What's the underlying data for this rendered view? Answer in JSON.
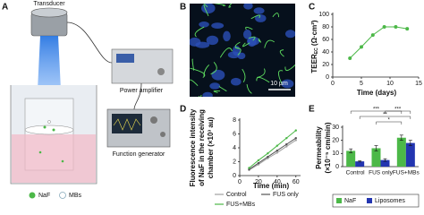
{
  "figure": {
    "panel_labels": [
      "A",
      "B",
      "C",
      "D",
      "E"
    ],
    "diagram": {
      "transducer": "Transducer",
      "power_amplifier": "Power amplifier",
      "function_generator": "Function generator",
      "legend": [
        "NaF",
        "MBs"
      ]
    },
    "scale_bar": "10 µm"
  },
  "chart_data": [
    {
      "type": "line",
      "ylabel": {
        "main": "TEER",
        "sub": "EC",
        "unit": "(Ω·cm²)"
      },
      "xlabel": "Time (days)",
      "x": [
        3,
        5,
        7,
        9,
        11,
        13
      ],
      "values": [
        30,
        48,
        67,
        80,
        80,
        77
      ],
      "color": "#4cb848",
      "xlim": [
        0,
        15
      ],
      "xticks": [
        0,
        5,
        10,
        15
      ],
      "ylim": [
        0,
        100
      ],
      "yticks": [
        0,
        20,
        40,
        60,
        80,
        100
      ]
    },
    {
      "type": "line",
      "ylabel": [
        "Fluorescence intensity",
        "of NaF in the receiving",
        "chamber (×10³ au)"
      ],
      "xlabel": "Time (min)",
      "x": [
        10,
        20,
        30,
        40,
        50,
        60
      ],
      "series": [
        {
          "name": "Control",
          "color": "#a0a0a0",
          "values": [
            0.8,
            1.6,
            2.5,
            3.3,
            4.2,
            5.1
          ]
        },
        {
          "name": "FUS only",
          "color": "#555555",
          "values": [
            0.9,
            1.8,
            2.7,
            3.6,
            4.5,
            5.4
          ]
        },
        {
          "name": "FUS+MBs",
          "color": "#4cb848",
          "values": [
            1.1,
            2.2,
            3.2,
            4.3,
            5.4,
            6.5
          ]
        }
      ],
      "xlim": [
        0,
        65
      ],
      "xticks": [
        0,
        20,
        40,
        60
      ],
      "ylim": [
        0,
        8
      ],
      "yticks": [
        0,
        2,
        4,
        6,
        8
      ]
    },
    {
      "type": "bar",
      "ylabel": [
        "Permeability",
        "(×10⁻⁵ cm/min)"
      ],
      "categories": [
        "Control",
        "FUS only",
        "FUS+MBs"
      ],
      "series": [
        {
          "name": "NaF",
          "color": "#4cb848",
          "values": [
            12,
            14,
            22
          ],
          "errors": [
            1.5,
            2,
            2
          ]
        },
        {
          "name": "Liposomes",
          "color": "#2335b0",
          "values": [
            4,
            5,
            18
          ],
          "errors": [
            0.5,
            1,
            2
          ]
        }
      ],
      "significance": [
        "***",
        "**",
        "*",
        "***"
      ],
      "ylim": [
        0,
        30
      ],
      "yticks": [
        0,
        10,
        20,
        30
      ]
    }
  ]
}
